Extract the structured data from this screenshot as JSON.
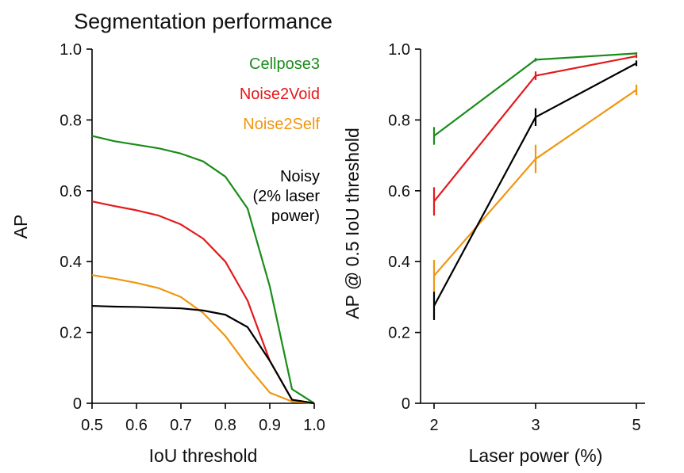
{
  "figure_title": "Segmentation performance",
  "colors": {
    "cellpose3": "#1a8c1a",
    "noise2void": "#e31a1c",
    "noise2self": "#f0960f",
    "noisy": "#000000",
    "axis": "#000000"
  },
  "chart_data": [
    {
      "type": "line",
      "title": "Segmentation performance",
      "xlabel": "IoU threshold",
      "ylabel": "AP",
      "xlim": [
        0.5,
        1.0
      ],
      "ylim": [
        0,
        1.0
      ],
      "xticks": [
        0.5,
        0.6,
        0.7,
        0.8,
        0.9,
        1.0
      ],
      "xtick_labels": [
        "0.5",
        "0.6",
        "0.7",
        "0.8",
        "0.9",
        "1.0"
      ],
      "yticks": [
        0,
        0.2,
        0.4,
        0.6,
        0.8,
        1.0
      ],
      "ytick_labels": [
        "0",
        "0.2",
        "0.4",
        "0.6",
        "0.8",
        "1.0"
      ],
      "grid": false,
      "legend": {
        "position": "top-right",
        "entries": [
          {
            "label": "Cellpose3",
            "series": "cellpose3"
          },
          {
            "label": "Noise2Void",
            "series": "noise2void"
          },
          {
            "label": "Noise2Self",
            "series": "noise2self"
          },
          {
            "label_lines": [
              "Noisy",
              "(2% laser",
              "power)"
            ],
            "series": "noisy"
          }
        ]
      },
      "x": [
        0.5,
        0.55,
        0.6,
        0.65,
        0.7,
        0.75,
        0.8,
        0.85,
        0.9,
        0.95,
        1.0
      ],
      "series": [
        {
          "name": "Cellpose3",
          "key": "cellpose3",
          "values": [
            0.755,
            0.74,
            0.73,
            0.72,
            0.705,
            0.683,
            0.64,
            0.55,
            0.33,
            0.04,
            0.0
          ]
        },
        {
          "name": "Noise2Void",
          "key": "noise2void",
          "values": [
            0.57,
            0.557,
            0.545,
            0.53,
            0.505,
            0.465,
            0.4,
            0.29,
            0.12,
            0.01,
            0.0
          ]
        },
        {
          "name": "Noise2Self",
          "key": "noise2self",
          "values": [
            0.362,
            0.352,
            0.34,
            0.325,
            0.3,
            0.255,
            0.19,
            0.105,
            0.03,
            0.005,
            0.0
          ]
        },
        {
          "name": "Noisy (2% laser power)",
          "key": "noisy",
          "values": [
            0.275,
            0.273,
            0.272,
            0.27,
            0.268,
            0.262,
            0.25,
            0.215,
            0.12,
            0.01,
            0.0
          ]
        }
      ]
    },
    {
      "type": "line",
      "title": "",
      "xlabel": "Laser power (%)",
      "ylabel": "AP @ 0.5 IoU threshold",
      "xlim": [
        1.9,
        5.2
      ],
      "ylim": [
        0,
        1.0
      ],
      "xticks": [
        2,
        3,
        5
      ],
      "xtick_labels": [
        "2",
        "3",
        "5"
      ],
      "yticks": [
        0,
        0.2,
        0.4,
        0.6,
        0.8,
        1.0
      ],
      "ytick_labels": [
        "0",
        "0.2",
        "0.4",
        "0.6",
        "0.8",
        "1.0"
      ],
      "grid": false,
      "x": [
        2,
        3,
        5
      ],
      "series": [
        {
          "name": "Cellpose3",
          "key": "cellpose3",
          "values": [
            0.755,
            0.97,
            0.988
          ],
          "error": [
            0.025,
            0.005,
            0.003
          ]
        },
        {
          "name": "Noise2Void",
          "key": "noise2void",
          "values": [
            0.57,
            0.925,
            0.98
          ],
          "error": [
            0.04,
            0.012,
            0.005
          ]
        },
        {
          "name": "Noise2Self",
          "key": "noise2self",
          "values": [
            0.36,
            0.69,
            0.885
          ],
          "error": [
            0.045,
            0.04,
            0.015
          ]
        },
        {
          "name": "Noisy (2% laser power)",
          "key": "noisy",
          "values": [
            0.275,
            0.808,
            0.96
          ],
          "error": [
            0.04,
            0.025,
            0.008
          ]
        }
      ]
    }
  ]
}
